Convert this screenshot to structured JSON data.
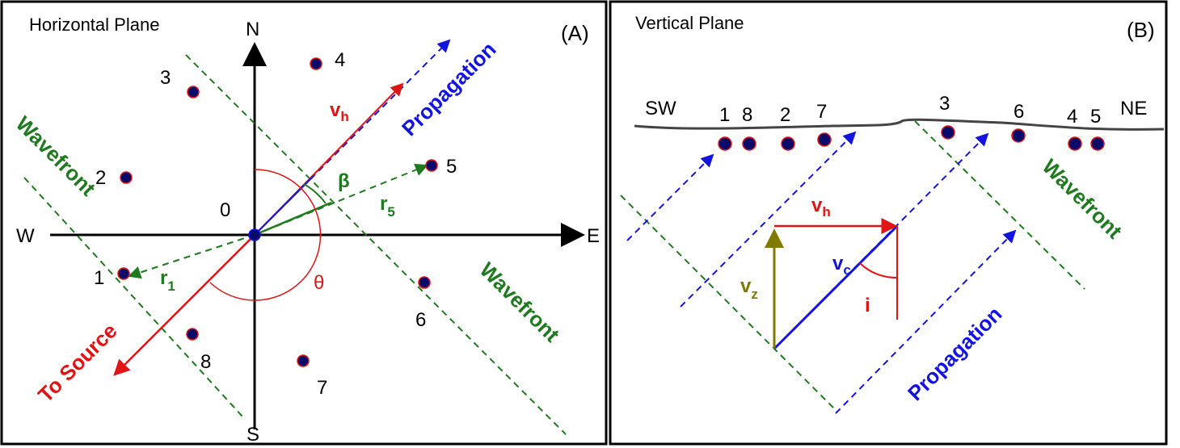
{
  "panelA": {
    "title": "Horizontal Plane",
    "tag": "(A)",
    "compass": {
      "n": "N",
      "s": "S",
      "e": "E",
      "w": "W"
    },
    "origin": "0",
    "stations": [
      "1",
      "2",
      "3",
      "4",
      "5",
      "6",
      "7",
      "8"
    ],
    "wavefront_a": "Wavefront",
    "wavefront_b": "Wavefront",
    "propagation": "Propagation",
    "to_source": "To Source",
    "vh": "v",
    "vh_sub": "h",
    "beta": "β",
    "theta": "θ",
    "r5": "r",
    "r5_sub": "5",
    "r1": "r",
    "r1_sub": "1"
  },
  "panelB": {
    "title": "Vertical Plane",
    "tag": "(B)",
    "sw": "SW",
    "ne": "NE",
    "stations": [
      "1",
      "8",
      "2",
      "7",
      "3",
      "6",
      "4",
      "5"
    ],
    "wavefront": "Wavefront",
    "propagation": "Propagation",
    "vh": "v",
    "vh_sub": "h",
    "vc": "v",
    "vc_sub": "c",
    "vz": "v",
    "vz_sub": "z",
    "i": "i"
  },
  "colors": {
    "wavefront": "#1f7a1f",
    "propagation": "#1414e0",
    "source": "#e01414",
    "vertical": "#7f7a00",
    "station_fill": "#0a0a6a",
    "station_ring": "#e01414"
  }
}
